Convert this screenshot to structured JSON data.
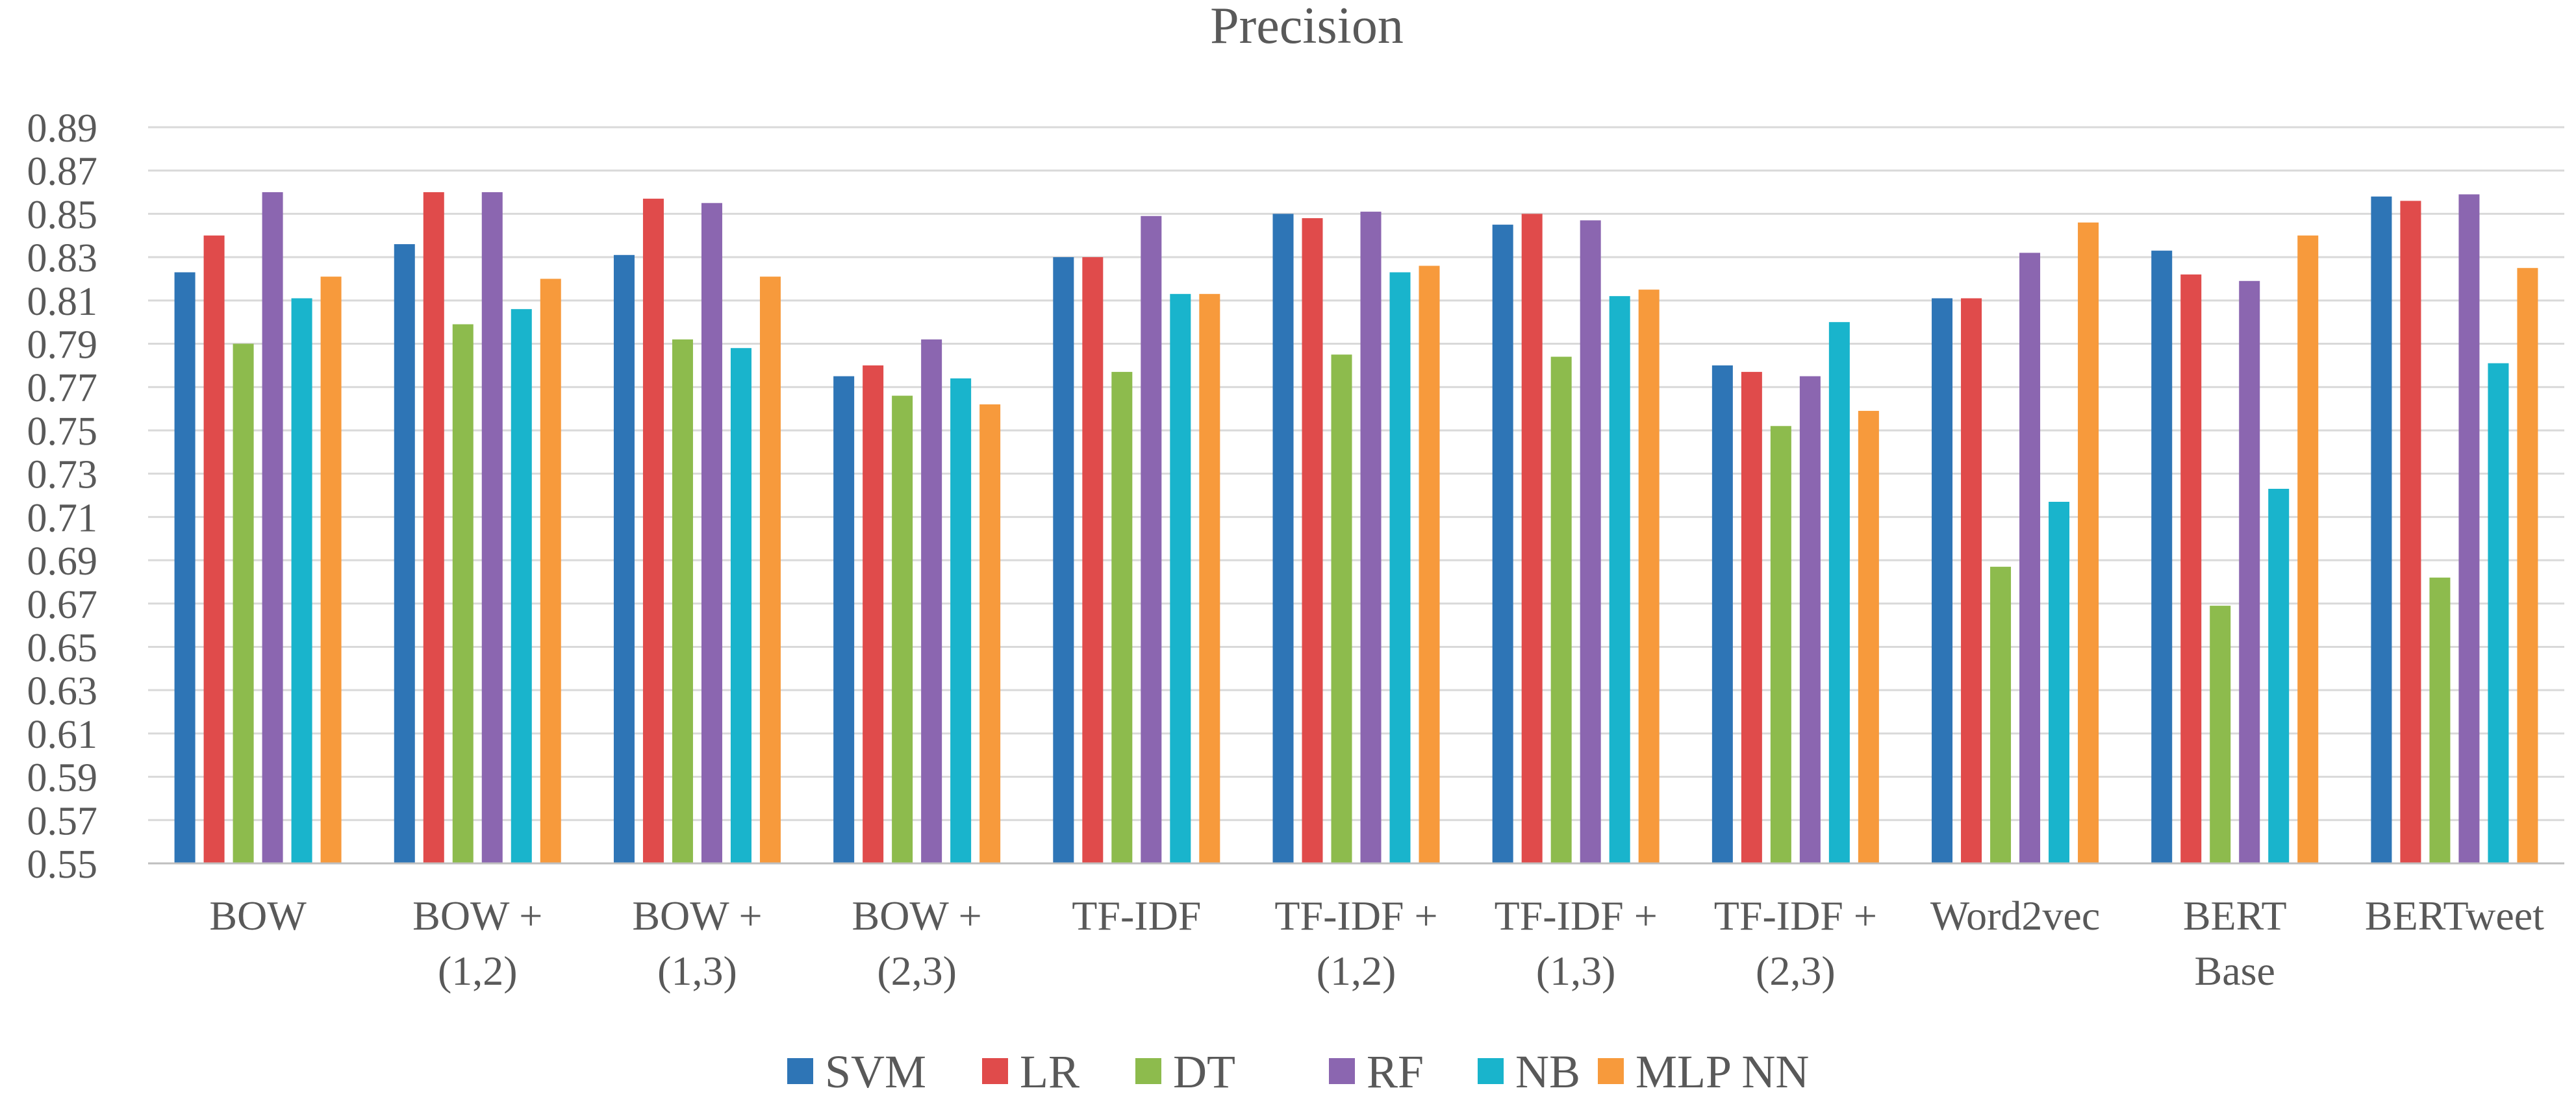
{
  "chart_data": {
    "type": "bar",
    "title": "Precision",
    "xlabel": "",
    "ylabel": "",
    "ylim": [
      0.55,
      0.89
    ],
    "yticks": [
      "0.55",
      "0.57",
      "0.59",
      "0.61",
      "0.63",
      "0.65",
      "0.67",
      "0.69",
      "0.71",
      "0.73",
      "0.75",
      "0.77",
      "0.79",
      "0.81",
      "0.83",
      "0.85",
      "0.87",
      "0.89"
    ],
    "grid": true,
    "legend_position": "bottom",
    "categories": [
      [
        "BOW"
      ],
      [
        "BOW +",
        "(1,2)"
      ],
      [
        "BOW +",
        "(1,3)"
      ],
      [
        "BOW +",
        "(2,3)"
      ],
      [
        "TF-IDF"
      ],
      [
        "TF-IDF +",
        "(1,2)"
      ],
      [
        "TF-IDF +",
        "(1,3)"
      ],
      [
        "TF-IDF +",
        "(2,3)"
      ],
      [
        "Word2vec"
      ],
      [
        "BERT",
        "Base"
      ],
      [
        "BERTweet"
      ]
    ],
    "series": [
      {
        "name": "SVM",
        "color": "#2E75B6",
        "values": [
          0.823,
          0.836,
          0.831,
          0.775,
          0.83,
          0.85,
          0.845,
          0.78,
          0.811,
          0.833,
          0.858
        ]
      },
      {
        "name": "LR",
        "color": "#E04B4B",
        "values": [
          0.84,
          0.86,
          0.857,
          0.78,
          0.83,
          0.848,
          0.85,
          0.777,
          0.811,
          0.822,
          0.856
        ]
      },
      {
        "name": "DT",
        "color": "#8DBB4D",
        "values": [
          0.79,
          0.799,
          0.792,
          0.766,
          0.777,
          0.785,
          0.784,
          0.752,
          0.687,
          0.669,
          0.682
        ]
      },
      {
        "name": "RF",
        "color": "#8B66B0",
        "values": [
          0.86,
          0.86,
          0.855,
          0.792,
          0.849,
          0.851,
          0.847,
          0.775,
          0.832,
          0.819,
          0.859
        ]
      },
      {
        "name": "NB",
        "color": "#19B4CC",
        "values": [
          0.811,
          0.806,
          0.788,
          0.774,
          0.813,
          0.823,
          0.812,
          0.8,
          0.717,
          0.723,
          0.781
        ]
      },
      {
        "name": "MLP NN",
        "color": "#F79A3C",
        "values": [
          0.821,
          0.82,
          0.821,
          0.762,
          0.813,
          0.826,
          0.815,
          0.759,
          0.846,
          0.84,
          0.825
        ]
      }
    ]
  }
}
